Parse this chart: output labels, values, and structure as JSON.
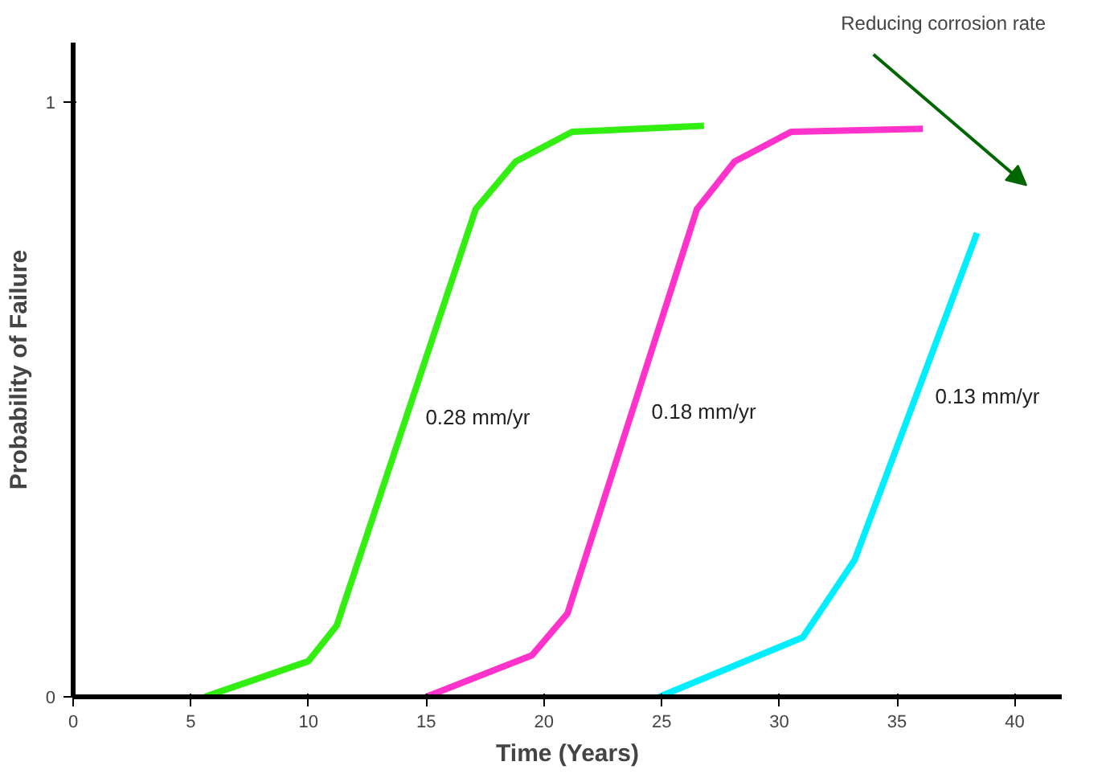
{
  "chart_data": {
    "type": "line",
    "xlabel": "Time (Years)",
    "ylabel": "Probability of Failure",
    "xlim": [
      0,
      42
    ],
    "ylim": [
      0,
      1.1
    ],
    "xticks": [
      0,
      5,
      10,
      15,
      20,
      25,
      30,
      35,
      40
    ],
    "yticks": [
      0,
      1
    ],
    "grid": false,
    "marker": "none",
    "line_style": "solid",
    "series": [
      {
        "name": "0.28 mm/yr",
        "color": "#33ee11",
        "x": [
          5.6,
          10.0,
          11.2,
          17.1,
          18.8,
          21.2,
          26.8
        ],
        "values": [
          0.0,
          0.06,
          0.12,
          0.82,
          0.9,
          0.95,
          0.96
        ]
      },
      {
        "name": "0.18 mm/yr",
        "color": "#ff33cc",
        "x": [
          15.0,
          19.5,
          21.0,
          26.5,
          28.1,
          30.5,
          36.1
        ],
        "values": [
          0.0,
          0.07,
          0.14,
          0.82,
          0.9,
          0.95,
          0.955
        ]
      },
      {
        "name": "0.13 mm/yr",
        "color": "#00eeff",
        "x": [
          24.9,
          31.0,
          33.2,
          38.4
        ],
        "values": [
          0.0,
          0.1,
          0.23,
          0.78
        ]
      }
    ],
    "annotations": [
      "Reducing corrosion rate"
    ]
  }
}
